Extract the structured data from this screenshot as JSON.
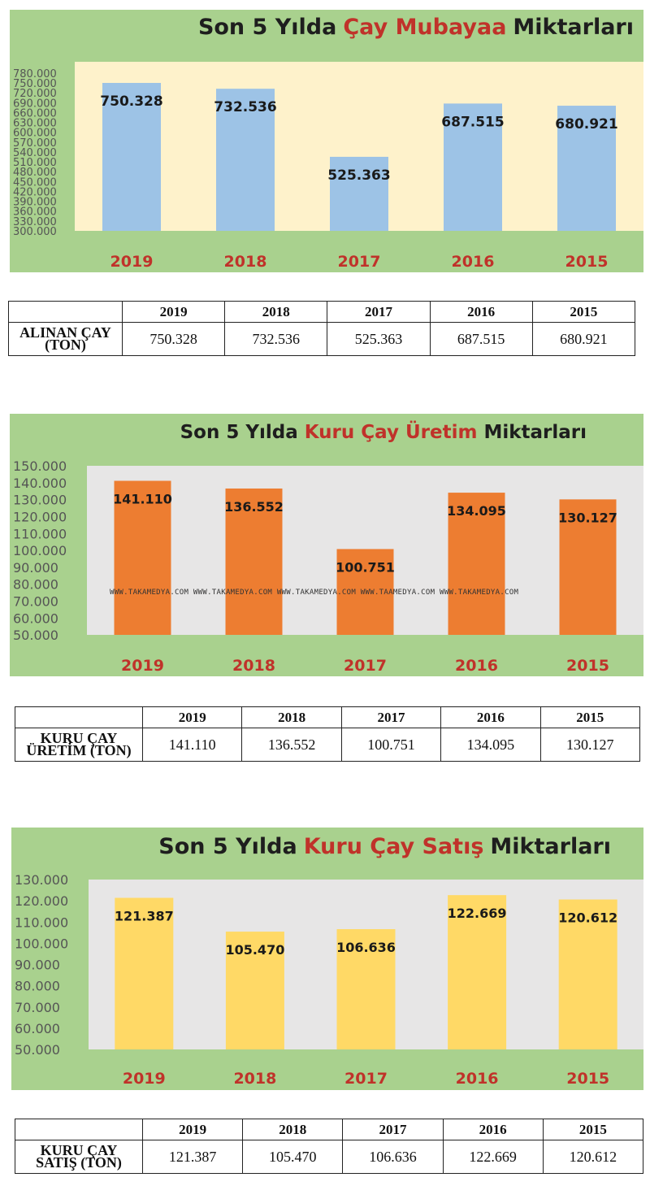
{
  "charts": [
    {
      "title_parts": [
        {
          "text": "Son 5 Yılda",
          "hl": false
        },
        {
          "text": "Çay Mubayaa",
          "hl": true
        },
        {
          "text": "Miktarları",
          "hl": false
        }
      ],
      "plot_bg": "#fef2cb",
      "bar_color": "#9dc3e6",
      "yticks": [
        "780.000",
        "750.000",
        "720.000",
        "690.000",
        "660.000",
        "630.000",
        "600.000",
        "570.000",
        "540.000",
        "510.000",
        "480.000",
        "450.000",
        "420.000",
        "390.000",
        "360.000",
        "330.000",
        "300.000"
      ],
      "table": {
        "row_label_lines": [
          "ALINAN ÇAY",
          "(TON)"
        ],
        "values": [
          "750.328",
          "732.536",
          "525.363",
          "687.515",
          "680.921"
        ]
      }
    },
    {
      "title_parts": [
        {
          "text": "Son 5 Yılda",
          "hl": false
        },
        {
          "text": "Kuru Çay Üretim",
          "hl": true
        },
        {
          "text": "Miktarları",
          "hl": false
        }
      ],
      "plot_bg": "#e7e6e6",
      "bar_color": "#ed7d31",
      "yticks": [
        "150.000",
        "140.000",
        "130.000",
        "120.000",
        "110.000",
        "100.000",
        "90.000",
        "80.000",
        "70.000",
        "60.000",
        "50.000"
      ],
      "table": {
        "row_label_lines": [
          "KURU ÇAY",
          "ÜRETİM (TON)"
        ],
        "values": [
          "141.110",
          "136.552",
          "100.751",
          "134.095",
          "130.127"
        ]
      }
    },
    {
      "title_parts": [
        {
          "text": "Son 5 Yılda",
          "hl": false
        },
        {
          "text": "Kuru Çay Satış",
          "hl": true
        },
        {
          "text": "Miktarları",
          "hl": false
        }
      ],
      "plot_bg": "#e7e6e6",
      "bar_color": "#ffd966",
      "yticks": [
        "130.000",
        "120.000",
        "110.000",
        "100.000",
        "90.000",
        "80.000",
        "70.000",
        "60.000",
        "50.000"
      ],
      "table": {
        "row_label_lines": [
          "KURU ÇAY",
          "SATIŞ (TON)"
        ],
        "values": [
          "121.387",
          "105.470",
          "106.636",
          "122.669",
          "120.612"
        ]
      }
    }
  ],
  "watermark": "WWW.TAKAMEDYA.COM WWW.TAKAMEDYA.COM WWW.TAKAMEDYA.COM WWW.TAAMEDYA.COM WWW.TAKAMEDYA.COM",
  "chart_data": [
    {
      "type": "bar",
      "title": "Son 5 Yılda Çay Mubayaa Miktarları",
      "categories": [
        "2019",
        "2018",
        "2017",
        "2016",
        "2015"
      ],
      "values": [
        750.328,
        732.536,
        525.363,
        687.515,
        680.921
      ],
      "value_labels": [
        "750.328",
        "732.536",
        "525.363",
        "687.515",
        "680.921"
      ],
      "xlabel": "",
      "ylabel": "",
      "ylim": [
        300,
        780
      ],
      "grid": false,
      "legend": "none"
    },
    {
      "type": "bar",
      "title": "Son 5 Yılda Kuru Çay Üretim Miktarları",
      "categories": [
        "2019",
        "2018",
        "2017",
        "2016",
        "2015"
      ],
      "values": [
        141.11,
        136.552,
        100.751,
        134.095,
        130.127
      ],
      "value_labels": [
        "141.110",
        "136.552",
        "100.751",
        "134.095",
        "130.127"
      ],
      "xlabel": "",
      "ylabel": "",
      "ylim": [
        50,
        150
      ],
      "grid": false,
      "legend": "none"
    },
    {
      "type": "bar",
      "title": "Son 5 Yılda Kuru Çay Satış Miktarları",
      "categories": [
        "2019",
        "2018",
        "2017",
        "2016",
        "2015"
      ],
      "values": [
        121.387,
        105.47,
        106.636,
        122.669,
        120.612
      ],
      "value_labels": [
        "121.387",
        "105.470",
        "106.636",
        "122.669",
        "120.612"
      ],
      "xlabel": "",
      "ylabel": "",
      "ylim": [
        50,
        130
      ],
      "grid": false,
      "legend": "none"
    }
  ]
}
